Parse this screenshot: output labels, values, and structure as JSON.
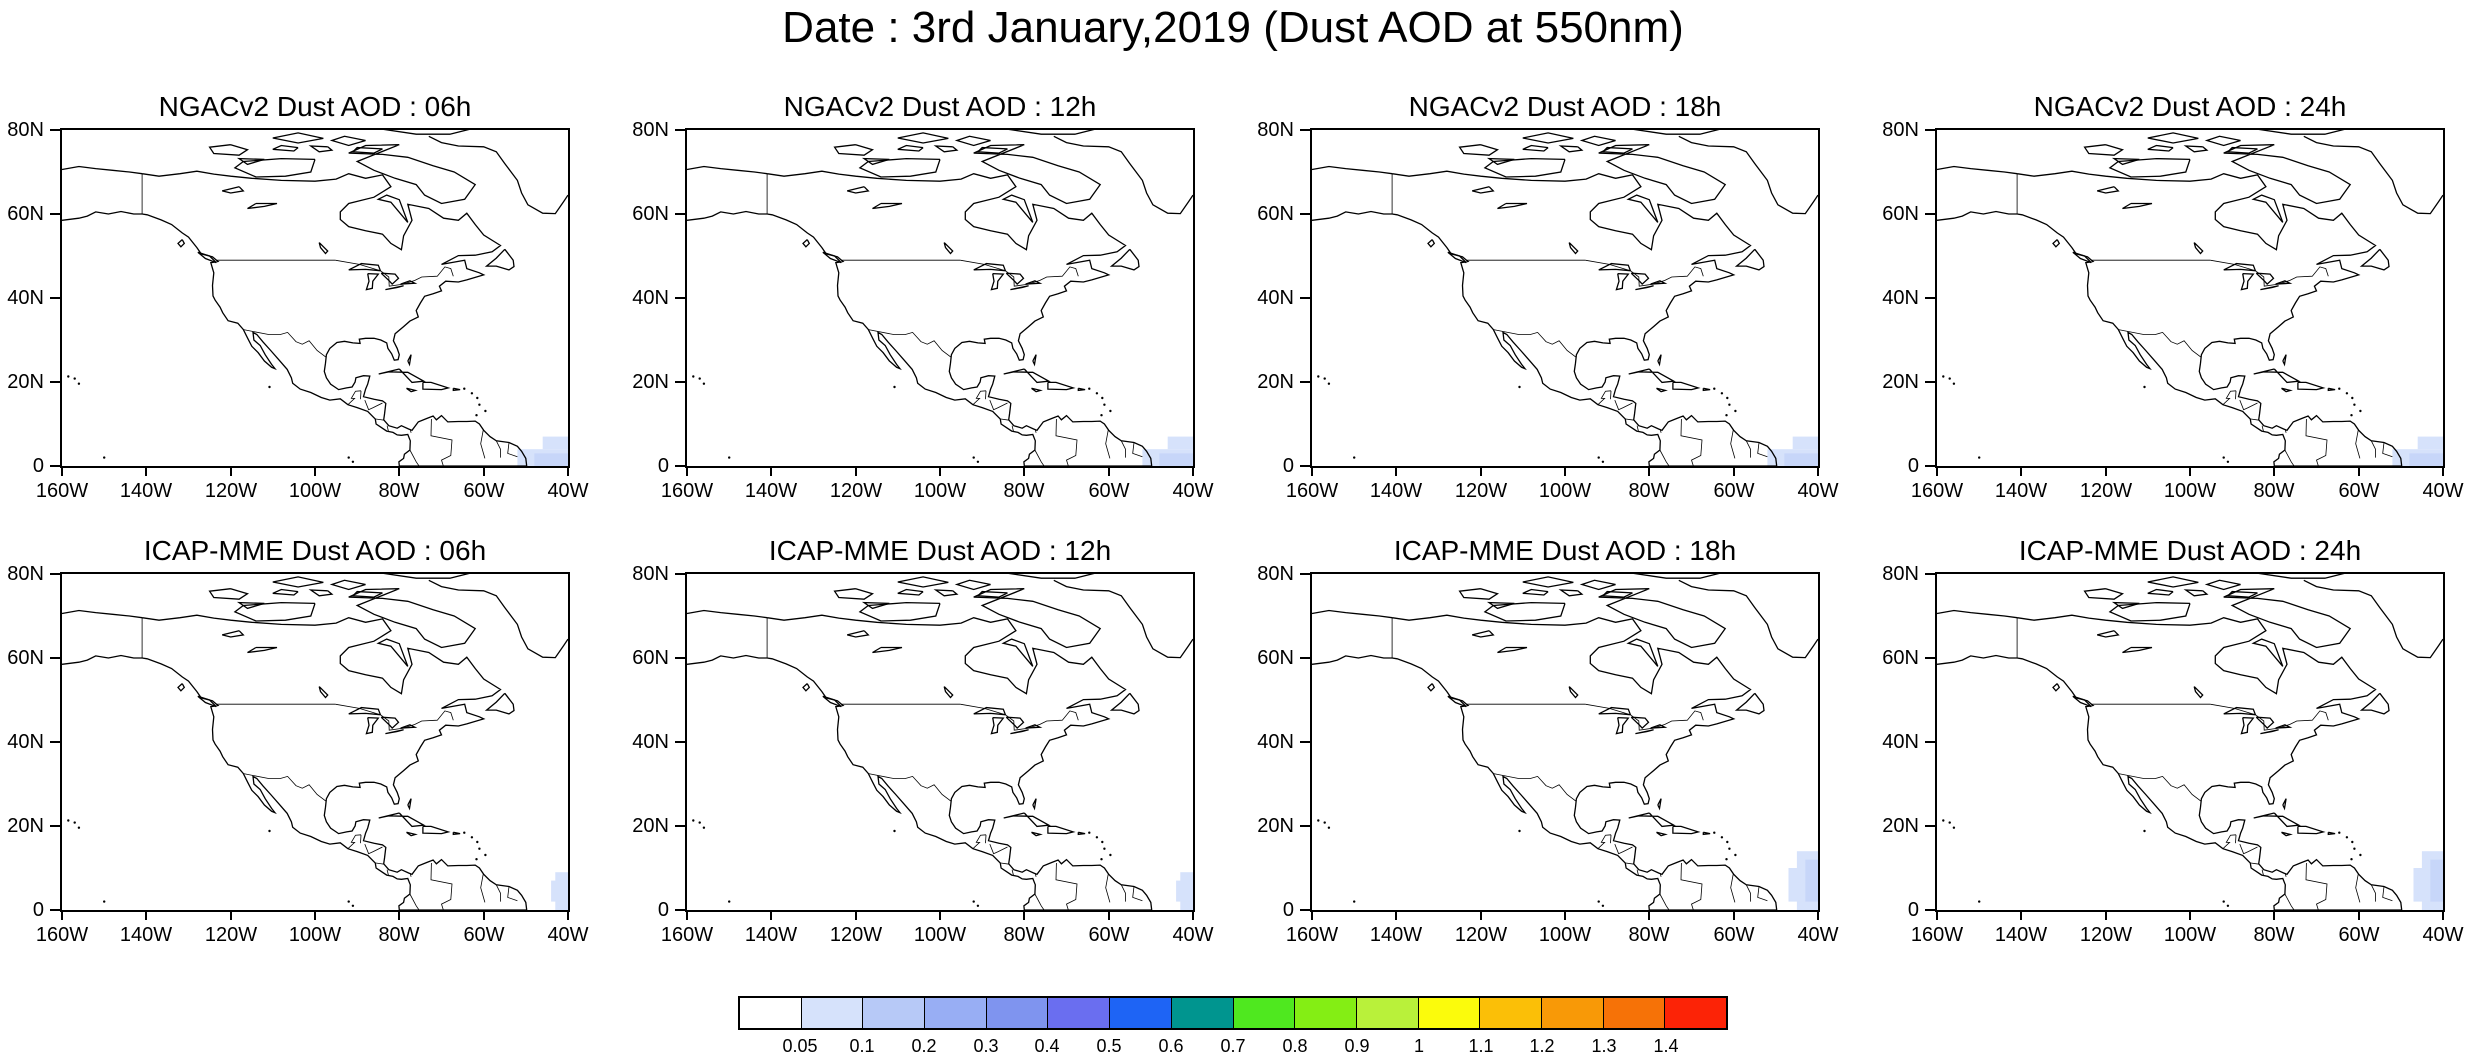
{
  "title": "Date : 3rd January,2019 (Dust AOD at 550nm)",
  "lat_labels": [
    "80N",
    "60N",
    "40N",
    "20N",
    "0"
  ],
  "lon_labels": [
    "160W",
    "140W",
    "120W",
    "100W",
    "80W",
    "60W",
    "40W"
  ],
  "lat_range": [
    0,
    80
  ],
  "lon_range": [
    -160,
    -40
  ],
  "panels": [
    {
      "title": "NGACv2 Dust AOD : 06h",
      "row": 0,
      "col": 0,
      "dust_extent": "small"
    },
    {
      "title": "NGACv2 Dust AOD : 12h",
      "row": 0,
      "col": 1,
      "dust_extent": "small"
    },
    {
      "title": "NGACv2 Dust AOD : 18h",
      "row": 0,
      "col": 2,
      "dust_extent": "small"
    },
    {
      "title": "NGACv2 Dust AOD : 24h",
      "row": 0,
      "col": 3,
      "dust_extent": "small"
    },
    {
      "title": "ICAP-MME Dust AOD : 06h",
      "row": 1,
      "col": 0,
      "dust_extent": "edge"
    },
    {
      "title": "ICAP-MME Dust AOD : 12h",
      "row": 1,
      "col": 1,
      "dust_extent": "edge"
    },
    {
      "title": "ICAP-MME Dust AOD : 18h",
      "row": 1,
      "col": 2,
      "dust_extent": "medium"
    },
    {
      "title": "ICAP-MME Dust AOD : 24h",
      "row": 1,
      "col": 3,
      "dust_extent": "medium"
    }
  ],
  "colorbar": {
    "labels": [
      "0.05",
      "0.1",
      "0.2",
      "0.3",
      "0.4",
      "0.5",
      "0.6",
      "0.7",
      "0.8",
      "0.9",
      "1",
      "1.1",
      "1.2",
      "1.3",
      "1.4"
    ],
    "colors": [
      "#ffffff",
      "#d6e2fb",
      "#b7c9f7",
      "#98aef4",
      "#7f94ef",
      "#6a6ef0",
      "#1e64f5",
      "#00958f",
      "#4fe81f",
      "#84ee14",
      "#b9f13a",
      "#fbfb0c",
      "#fbbf07",
      "#f89907",
      "#f67207",
      "#fc2306"
    ]
  }
}
